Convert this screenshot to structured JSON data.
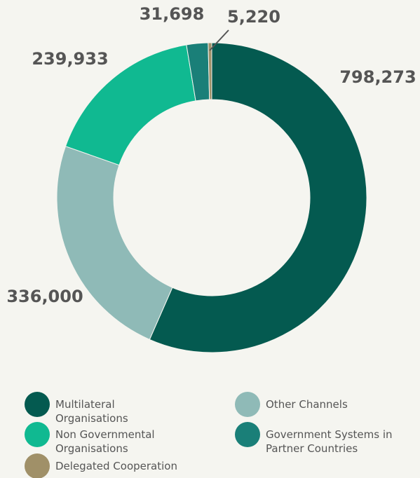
{
  "chart_data": {
    "type": "donut",
    "categories": [
      "Multilateral Organisations",
      "Other Channels",
      "Non Governmental Organisations",
      "Government Systems in Partner Countries",
      "Delegated Cooperation"
    ],
    "values": [
      798273,
      336000,
      239933,
      31698,
      5220
    ],
    "value_labels": [
      "798,273",
      "336,000",
      "239,933",
      "31,698",
      "5,220"
    ],
    "colors": [
      "#045a50",
      "#8fbab7",
      "#10b991",
      "#1a7f78",
      "#a09068"
    ],
    "legend": "bottom"
  }
}
